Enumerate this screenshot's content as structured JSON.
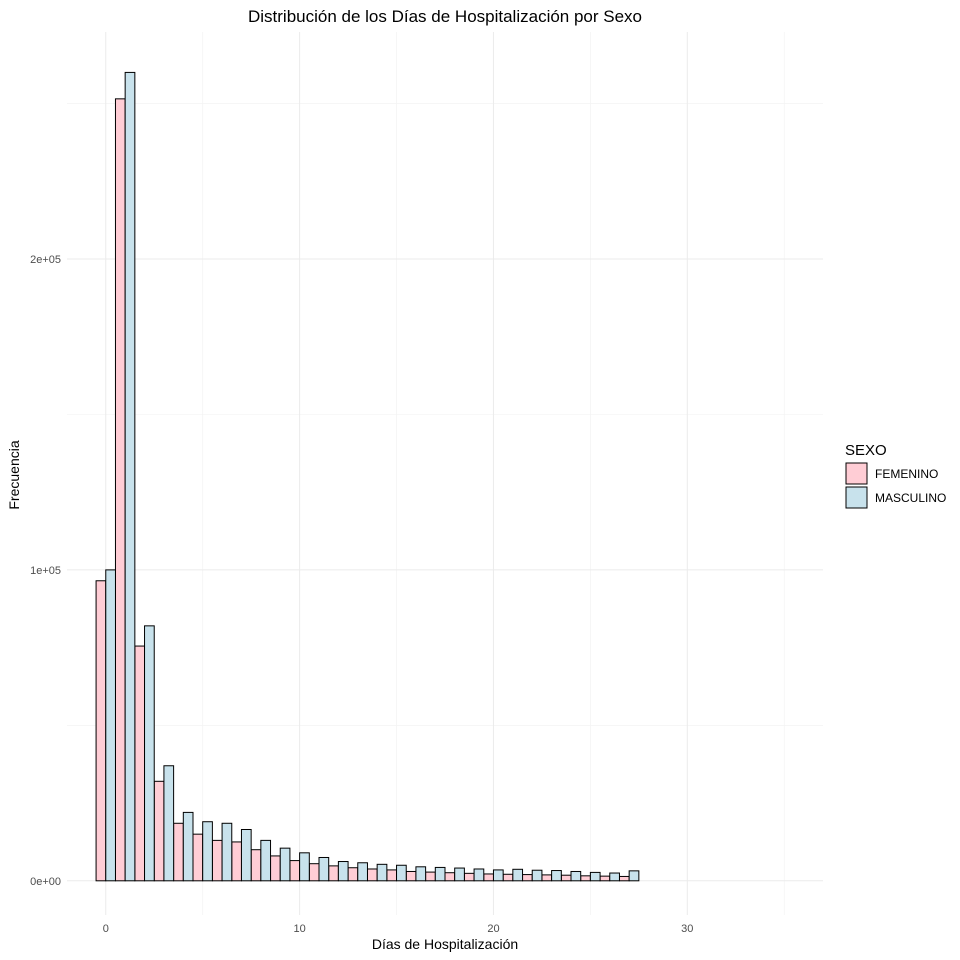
{
  "chart_data": {
    "type": "bar",
    "title": "Distribución de los Días de Hospitalización por Sexo",
    "xlabel": "Días de Hospitalización",
    "ylabel": "Frecuencia",
    "x_ticks": [
      0,
      10,
      20,
      30
    ],
    "x_tick_labels": [
      "0",
      "10",
      "20",
      "30"
    ],
    "y_ticks": [
      0,
      100000,
      200000
    ],
    "y_tick_labels": [
      "0e+00",
      "1e+05",
      "2e+05"
    ],
    "xlim": [
      -2,
      37
    ],
    "ylim": [
      -11000,
      273000
    ],
    "bin_width": 1,
    "legend_title": "SEXO",
    "legend_position": "right",
    "grid": true,
    "colors": {
      "FEMENINO": "#ffcdd5",
      "MASCULINO": "#c8e2ec"
    },
    "x": [
      0,
      1,
      2,
      3,
      4,
      5,
      6,
      7,
      8,
      9,
      10,
      11,
      12,
      13,
      14,
      15,
      16,
      17,
      18,
      19,
      20,
      21,
      22,
      23,
      24,
      25,
      26,
      27,
      28,
      29,
      30,
      31,
      32,
      33,
      34,
      35
    ],
    "series": [
      {
        "name": "FEMENINO",
        "values": [
          96500,
          251500,
          75500,
          32000,
          18500,
          15000,
          13000,
          12500,
          10000,
          8000,
          6500,
          5500,
          4800,
          4200,
          3800,
          3500,
          3000,
          2800,
          2600,
          2400,
          2200,
          2100,
          2000,
          1900,
          1800,
          1600,
          1500,
          1400,
          0,
          0,
          0,
          0,
          0,
          0,
          0,
          0
        ]
      },
      {
        "name": "MASCULINO",
        "values": [
          100000,
          260000,
          82000,
          37000,
          22000,
          19000,
          18500,
          16500,
          13000,
          10500,
          9000,
          7500,
          6200,
          5800,
          5300,
          5000,
          4500,
          4300,
          4100,
          3800,
          3500,
          3700,
          3400,
          3300,
          3000,
          2700,
          2500,
          3200,
          0,
          0,
          0,
          0,
          0,
          0,
          0,
          0
        ]
      }
    ]
  }
}
